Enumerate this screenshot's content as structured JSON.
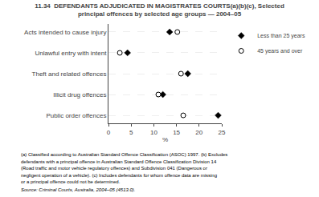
{
  "chart_data": {
    "type": "dot",
    "orientation": "horizontal",
    "title": "11.34  DEFENDANTS ADJUDICATED IN MAGISTRATES COURTS(a)(b)(c), Selected",
    "subtitle": "principal offences by selected age groups — 2004–05",
    "categories": [
      "Acts intended to cause injury",
      "Unlawful entry with intent",
      "Theft and related offences",
      "Illicit drug offences",
      "Public order offences"
    ],
    "series": [
      {
        "name": "Less than 25 years",
        "color": "#000000",
        "marker": "diamond",
        "values": [
          13.5,
          4.2,
          17.5,
          12.0,
          24.2
        ]
      },
      {
        "name": "45 years and over",
        "color": "#000000",
        "marker": "circle-open",
        "values": [
          15.2,
          2.5,
          16.0,
          11.0,
          16.5
        ]
      }
    ],
    "xlabel": "%",
    "xlim": [
      0,
      25
    ],
    "xticks": [
      0,
      5,
      10,
      15,
      20,
      25
    ],
    "grid": "y",
    "legend": "right",
    "annotations": [
      "(a) Classified according to Australian Standard Offence Classification (ASOC) 1997. (b) Excludes",
      "defendants with a principal offence in Australian Standard Offence Classification Division 14",
      "(Road traffic and motor vehicle regulatory offences) and Subdivision 041 (Dangerous or",
      "negligent operation of a vehicle). (c) Includes defendants for whom offence data are missing",
      "or a principal offence could not be determined."
    ],
    "source": "Source: Criminal Courts, Australia, 2004–05 (4513.0)."
  }
}
